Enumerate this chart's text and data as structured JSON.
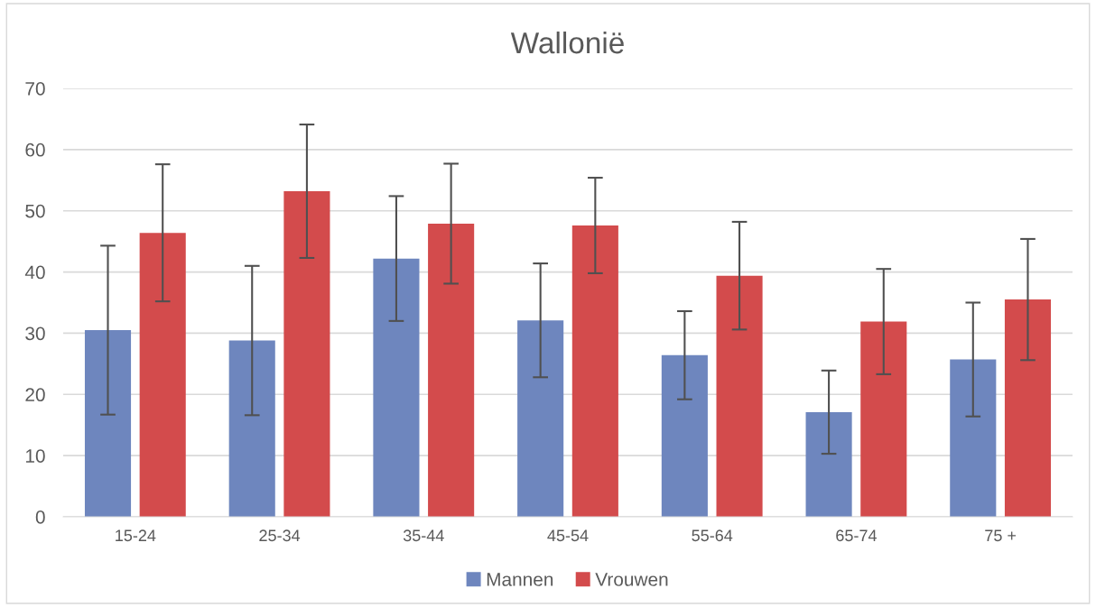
{
  "chart_data": {
    "type": "bar",
    "title": "Wallonië",
    "categories": [
      "15-24",
      "25-34",
      "35-44",
      "45-54",
      "55-64",
      "65-74",
      "75 +"
    ],
    "series": [
      {
        "name": "Mannen",
        "color": "#6e86be",
        "values": [
          30.5,
          28.8,
          42.2,
          32.1,
          26.4,
          17.1,
          25.7
        ],
        "errors": [
          13.8,
          12.2,
          10.2,
          9.3,
          7.2,
          6.8,
          9.3
        ]
      },
      {
        "name": "Vrouwen",
        "color": "#d34b4c",
        "values": [
          46.4,
          53.2,
          47.9,
          47.6,
          39.4,
          31.9,
          35.5
        ],
        "errors": [
          11.2,
          10.9,
          9.8,
          7.8,
          8.8,
          8.6,
          9.9
        ]
      }
    ],
    "ylim": [
      0,
      70
    ],
    "yticks": [
      0,
      10,
      20,
      30,
      40,
      50,
      60,
      70
    ],
    "grid": "y",
    "legend": "bottom"
  }
}
